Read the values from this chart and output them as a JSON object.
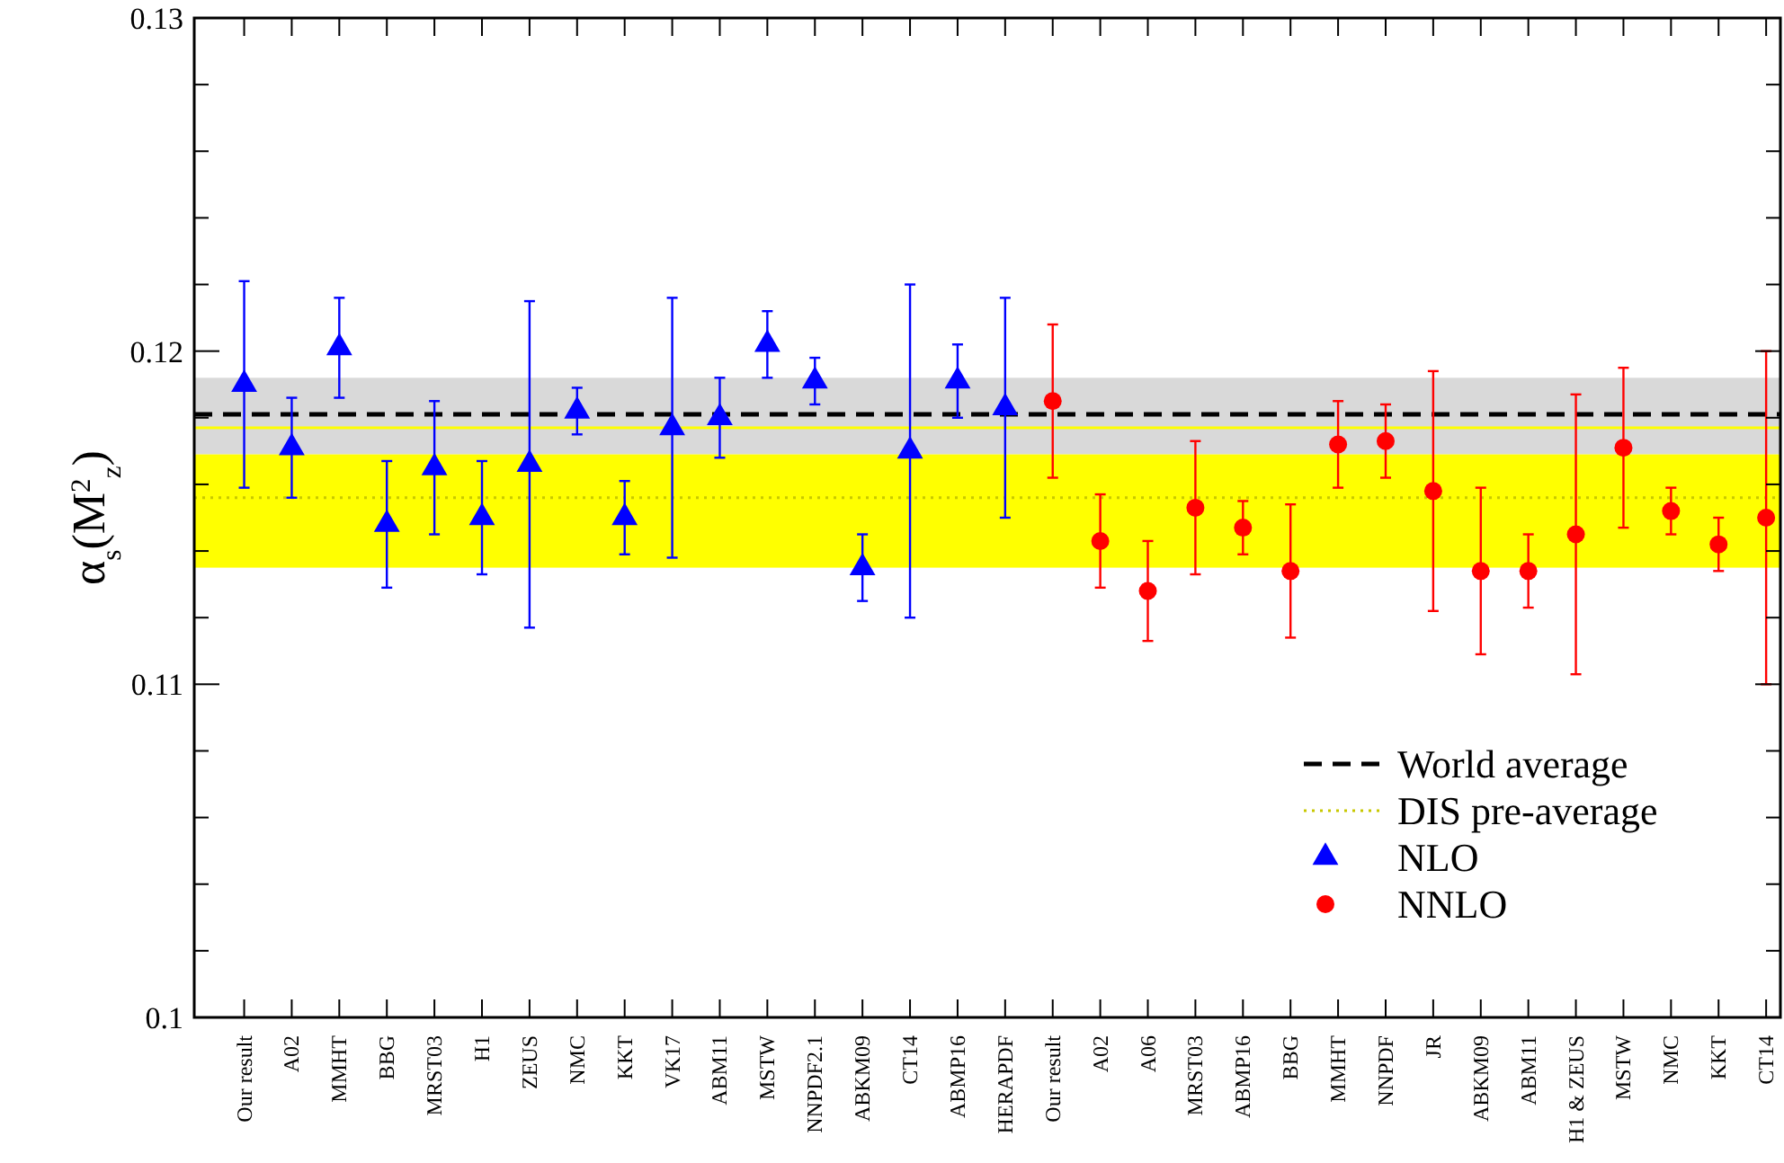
{
  "chart_data": {
    "type": "scatter",
    "ylabel": "α$_{s}$(M$^{2}$$_{z}$)",
    "categories": [
      "Our result",
      "A02",
      "MMHT",
      "BBG",
      "MRST03",
      "H1",
      "ZEUS",
      "NMC",
      "KKT",
      "VK17",
      "ABM11",
      "MSTW",
      "NNPDF2.1",
      "ABKM09",
      "CT14",
      "ABMP16",
      "HERAPDF",
      "Our result",
      "A02",
      "A06",
      "MRST03",
      "ABMP16",
      "BBG",
      "MMHT",
      "NNPDF",
      "JR",
      "ABKM09",
      "ABM11",
      "H1 & ZEUS",
      "MSTW",
      "NMC",
      "KKT",
      "CT14"
    ],
    "series": [
      {
        "name": "NLO",
        "color": "#0000ff",
        "marker": "triangle",
        "values": [
          0.119,
          0.1171,
          0.1201,
          0.1148,
          0.1165,
          0.115,
          0.1166,
          0.1182,
          0.115,
          0.1177,
          0.118,
          0.1202,
          0.1191,
          0.1135,
          0.117,
          0.1191,
          0.1183,
          null,
          null,
          null,
          null,
          null,
          null,
          null,
          null,
          null,
          null,
          null,
          null,
          null,
          null,
          null,
          null
        ],
        "errors": [
          0.0031,
          0.0015,
          0.0015,
          0.0019,
          0.002,
          0.0017,
          0.0049,
          0.0007,
          0.0011,
          0.0039,
          0.0012,
          0.001,
          0.0007,
          0.001,
          0.005,
          0.0011,
          0.0033,
          null,
          null,
          null,
          null,
          null,
          null,
          null,
          null,
          null,
          null,
          null,
          null,
          null,
          null,
          null,
          null
        ]
      },
      {
        "name": "NNLO",
        "color": "#ff0000",
        "marker": "circle",
        "values": [
          null,
          null,
          null,
          null,
          null,
          null,
          null,
          null,
          null,
          null,
          null,
          null,
          null,
          null,
          null,
          null,
          null,
          0.1185,
          0.1143,
          0.1128,
          0.1153,
          0.1147,
          0.1134,
          0.1172,
          0.1173,
          0.1158,
          0.1134,
          0.1134,
          0.1145,
          0.1171,
          0.1152,
          0.1142,
          0.115
        ],
        "errors": [
          null,
          null,
          null,
          null,
          null,
          null,
          null,
          null,
          null,
          null,
          null,
          null,
          null,
          null,
          null,
          null,
          null,
          0.0023,
          0.0014,
          0.0015,
          0.002,
          0.0008,
          0.002,
          0.0013,
          0.0011,
          0.0036,
          0.0025,
          0.0011,
          0.0042,
          0.0024,
          0.0007,
          0.0008,
          0.005
        ]
      }
    ],
    "ylim": [
      0.1,
      0.13
    ],
    "yticks": [
      0.1,
      {
        "value": 0.102,
        "label": null
      },
      {
        "value": 0.104,
        "label": null
      },
      {
        "value": 0.106,
        "label": null
      },
      {
        "value": 0.108,
        "label": null
      },
      0.11,
      {
        "value": 0.112,
        "label": null
      },
      {
        "value": 0.114,
        "label": null
      },
      {
        "value": 0.116,
        "label": null
      },
      {
        "value": 0.118,
        "label": null
      },
      0.12,
      {
        "value": 0.122,
        "label": null
      },
      {
        "value": 0.124,
        "label": null
      },
      {
        "value": 0.126,
        "label": null
      },
      {
        "value": 0.128,
        "label": null
      },
      0.13
    ],
    "bands": [
      {
        "axis": "y",
        "from": 0.1169,
        "to": 0.1192,
        "color": "#d9d9d9"
      },
      {
        "axis": "y",
        "from": 0.1135,
        "to": 0.1169,
        "color": "#ffff00"
      }
    ],
    "ref_lines": [
      {
        "axis": "y",
        "value": 0.1177,
        "color": "#ffff00",
        "line_style": "solid"
      },
      {
        "axis": "y",
        "value": 0.1181,
        "label": "World average",
        "color": "#000000",
        "line_style": "dashed"
      },
      {
        "axis": "y",
        "value": 0.1156,
        "label": "DIS pre-average",
        "color": "#c8c800",
        "line_style": "dotted"
      }
    ],
    "legend": "bottom right",
    "grid": false
  }
}
